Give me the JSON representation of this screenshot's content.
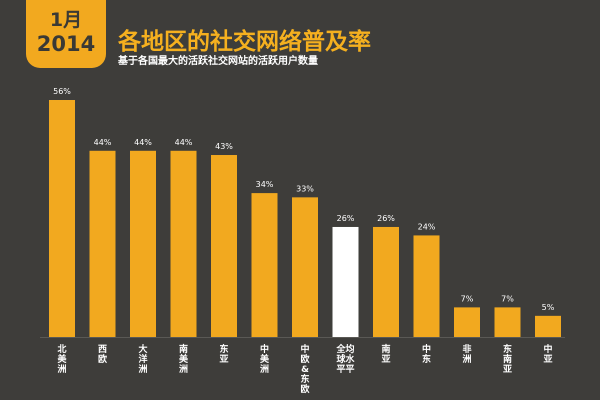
{
  "badge": {
    "month": "1月",
    "year": "2014"
  },
  "chart_data": {
    "type": "bar",
    "title": "各地区的社交网络普及率",
    "subtitle": "基于各国最大的活跃社交网站的活跃用户数量",
    "categories": [
      "北美洲",
      "西欧",
      "大洋洲",
      "南美洲",
      "东亚",
      "中美洲",
      "中欧&东欧",
      "全球水平",
      "南亚",
      "中东",
      "非洲",
      "东南亚",
      "中亚"
    ],
    "category_lines": [
      [
        "北",
        "美",
        "洲"
      ],
      [
        "西",
        "欧"
      ],
      [
        "大",
        "洋",
        "洲"
      ],
      [
        "南",
        "美",
        "洲"
      ],
      [
        "东",
        "亚"
      ],
      [
        "中",
        "美",
        "洲"
      ],
      [
        "中",
        "欧",
        "&",
        "东",
        "欧"
      ],
      [
        "全均",
        "球水",
        "平平"
      ],
      [
        "南",
        "亚"
      ],
      [
        "中",
        "东"
      ],
      [
        "非",
        "洲"
      ],
      [
        "东",
        "南",
        "亚"
      ],
      [
        "中",
        "亚"
      ]
    ],
    "values": [
      56,
      44,
      44,
      44,
      43,
      34,
      33,
      26,
      26,
      24,
      7,
      7,
      5
    ],
    "value_labels": [
      "56%",
      "44%",
      "44%",
      "44%",
      "43%",
      "34%",
      "33%",
      "26%",
      "26%",
      "24%",
      "7%",
      "7%",
      "5%"
    ],
    "highlight_index": 7,
    "ylim": [
      0,
      56
    ],
    "colors": {
      "bar": "#f2a91f",
      "highlight": "#ffffff",
      "background": "#3e3d3a",
      "text": "#ffffff"
    }
  }
}
